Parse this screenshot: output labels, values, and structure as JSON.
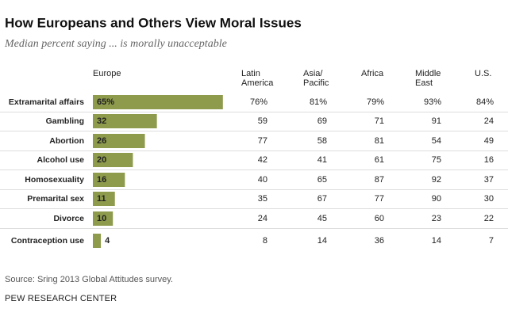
{
  "chart_data": {
    "type": "bar",
    "title": "How Europeans and Others View Moral Issues",
    "subtitle": "Median percent saying ... is morally unacceptable",
    "categories": [
      "Extramarital affairs",
      "Gambling",
      "Abortion",
      "Alcohol use",
      "Homosexuality",
      "Premarital sex",
      "Divorce",
      "Contraception use"
    ],
    "series": [
      {
        "name": "Europe",
        "color": "#8e9a4c",
        "values": [
          65,
          32,
          26,
          20,
          16,
          11,
          10,
          4
        ],
        "value_labels": [
          "65%",
          "32",
          "26",
          "20",
          "16",
          "11",
          "10",
          "4"
        ]
      },
      {
        "name": "Latin America",
        "values": [
          76,
          59,
          77,
          42,
          40,
          35,
          24,
          8
        ],
        "value_labels": [
          "76%",
          "59",
          "77",
          "42",
          "40",
          "35",
          "24",
          "8"
        ]
      },
      {
        "name": "Asia/Pacific",
        "values": [
          81,
          69,
          58,
          41,
          65,
          67,
          45,
          14
        ],
        "value_labels": [
          "81%",
          "69",
          "58",
          "41",
          "65",
          "67",
          "45",
          "14"
        ]
      },
      {
        "name": "Africa",
        "values": [
          79,
          71,
          81,
          61,
          87,
          77,
          60,
          36
        ],
        "value_labels": [
          "79%",
          "71",
          "81",
          "61",
          "87",
          "77",
          "60",
          "36"
        ]
      },
      {
        "name": "Middle East",
        "values": [
          93,
          91,
          54,
          75,
          92,
          90,
          23,
          14
        ],
        "value_labels": [
          "93%",
          "91",
          "54",
          "75",
          "92",
          "90",
          "23",
          "14"
        ]
      },
      {
        "name": "U.S.",
        "values": [
          84,
          24,
          49,
          16,
          37,
          30,
          22,
          7
        ],
        "value_labels": [
          "84%",
          "24",
          "49",
          "16",
          "37",
          "30",
          "22",
          "7"
        ]
      }
    ],
    "source": "Source: Sring 2013 Global Attitudes survey.",
    "credit": "PEW RESEARCH CENTER"
  }
}
